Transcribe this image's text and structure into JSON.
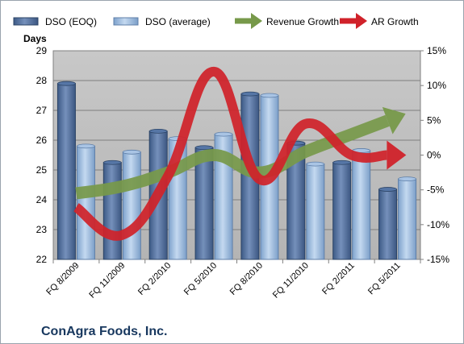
{
  "chart_data": {
    "type": "bar",
    "company": "ConAgra Foods, Inc.",
    "ylabel": "Days",
    "ylim": [
      22,
      29
    ],
    "y_ticks": [
      "22",
      "23",
      "24",
      "25",
      "26",
      "27",
      "28",
      "29"
    ],
    "y2lim": [
      -15,
      15
    ],
    "y2_ticks": [
      "-15%",
      "-10%",
      "-5%",
      "0%",
      "5%",
      "10%",
      "15%"
    ],
    "categories": [
      "FQ 8/2009",
      "FQ 11/2009",
      "FQ 2/2010",
      "FQ 5/2010",
      "FQ 8/2010",
      "FQ 11/2010",
      "FQ 2/2011",
      "FQ 5/2011"
    ],
    "series": [
      {
        "name": "DSO (EOQ)",
        "type": "bar",
        "axis": "left",
        "color": "#4f6f9f",
        "values": [
          27.9,
          25.25,
          26.3,
          25.75,
          27.55,
          25.9,
          25.25,
          24.35
        ]
      },
      {
        "name": "DSO (average)",
        "type": "bar",
        "axis": "left",
        "color": "#8fb3dd",
        "values": [
          25.8,
          25.6,
          26.05,
          26.2,
          27.5,
          25.2,
          25.65,
          24.7
        ]
      },
      {
        "name": "Revenue Growth",
        "type": "line",
        "axis": "right",
        "color": "#77994a",
        "values": [
          -5.5,
          -4.5,
          -2.5,
          0,
          -2.5,
          0.5,
          3,
          5.5
        ]
      },
      {
        "name": "AR Growth",
        "type": "line",
        "axis": "right",
        "color": "#d0222a",
        "values": [
          -7.5,
          -11.5,
          -3,
          12,
          -3.5,
          4.5,
          0,
          0
        ]
      }
    ],
    "legend_position": "top",
    "grid": true
  }
}
